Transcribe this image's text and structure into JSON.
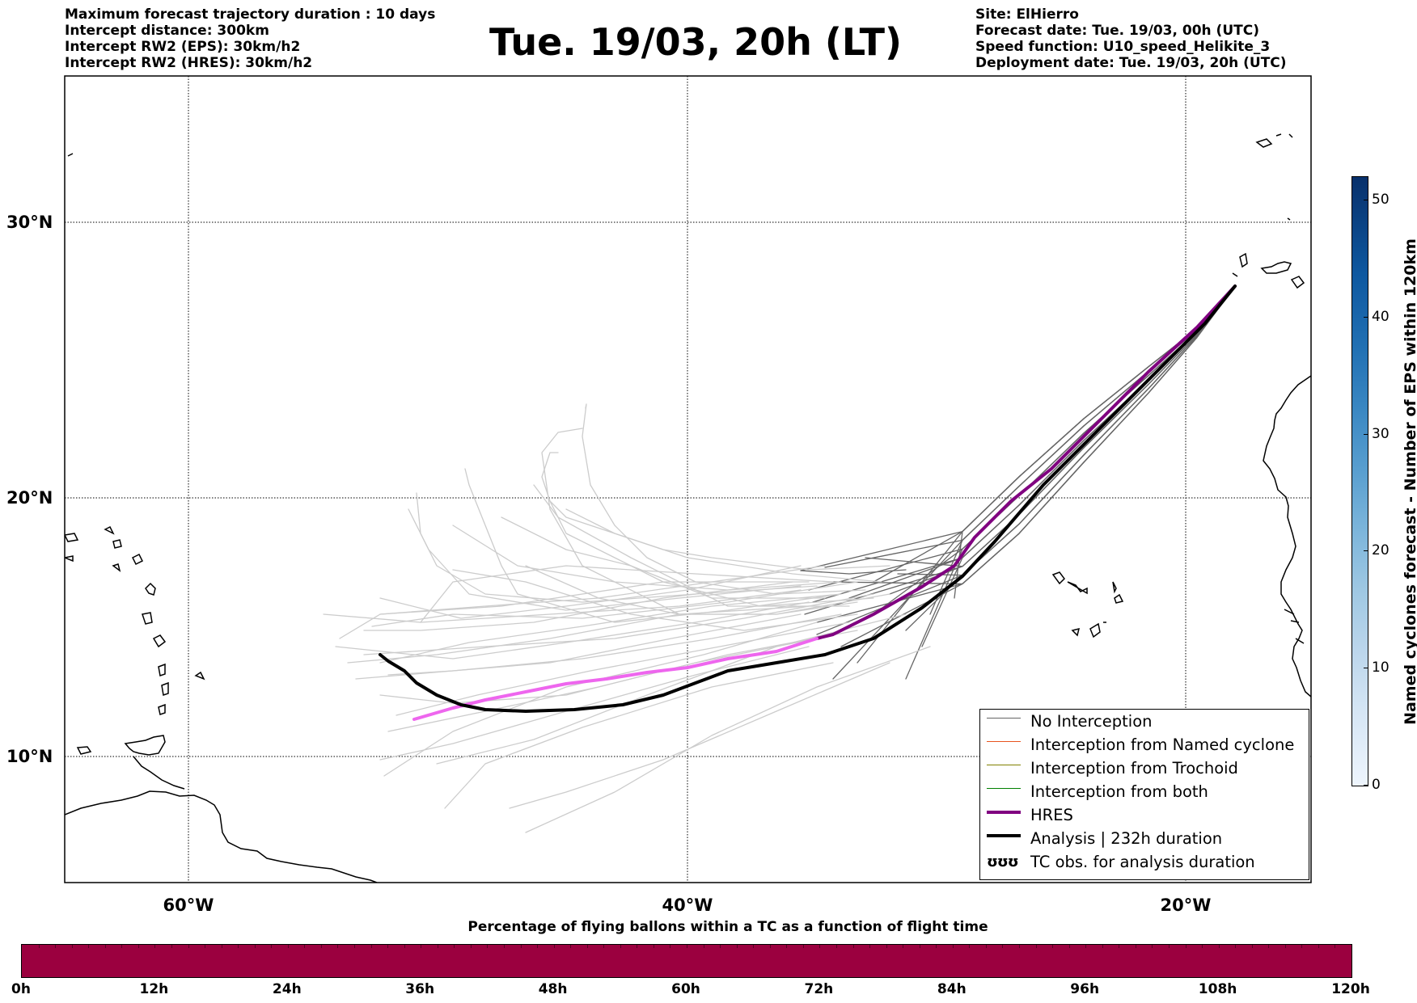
{
  "header": {
    "left_lines": [
      "Maximum forecast trajectory duration : 10 days",
      "Intercept distance: 300km",
      "Intercept RW2 (EPS):  30km/h2",
      "Intercept RW2 (HRES): 30km/h2"
    ],
    "title": "Tue. 19/03, 20h (LT)",
    "right_lines": [
      "Site: ElHierro",
      "Forecast date: Tue. 19/03, 00h (UTC)",
      "Speed function: U10_speed_Helikite_3",
      "Deployment date: Tue. 19/03, 20h (UTC)"
    ]
  },
  "map": {
    "lat_labels": [
      "30°N",
      "20°N",
      "10°N"
    ],
    "lon_labels": [
      "60°W",
      "40°W",
      "20°W"
    ],
    "colors": {
      "eps_near": "#666666",
      "eps_far": "#cccccc",
      "hres_near": "#800080",
      "hres_far": "#ee66ee",
      "analysis": "#000000",
      "coastline": "#000000"
    }
  },
  "legend": {
    "items": [
      {
        "label": "No Interception",
        "color": "#666666"
      },
      {
        "label": "Interception from Named cyclone",
        "color": "#e8541f"
      },
      {
        "label": "Interception from Trochoid",
        "color": "#808000"
      },
      {
        "label": "Interception from both",
        "color": "#008000"
      },
      {
        "label": "HRES",
        "color": "#800080"
      },
      {
        "label": "Analysis | 232h duration",
        "color": "#000000"
      },
      {
        "label": "TC obs. for analysis duration",
        "icon": "cyclone-icon",
        "symbol": "ʊʊʊ"
      }
    ]
  },
  "colorbar": {
    "label": "Named cyclones forecast - Number of EPS within 120km",
    "ticks": [
      "0",
      "10",
      "20",
      "30",
      "40",
      "50"
    ],
    "max": 52
  },
  "strip": {
    "title": "Percentage of flying ballons within a TC as a function of flight time",
    "ticks": [
      "0h",
      "12h",
      "24h",
      "36h",
      "48h",
      "60h",
      "72h",
      "84h",
      "96h",
      "108h",
      "120h"
    ],
    "fill_color": "#9b003f"
  }
}
